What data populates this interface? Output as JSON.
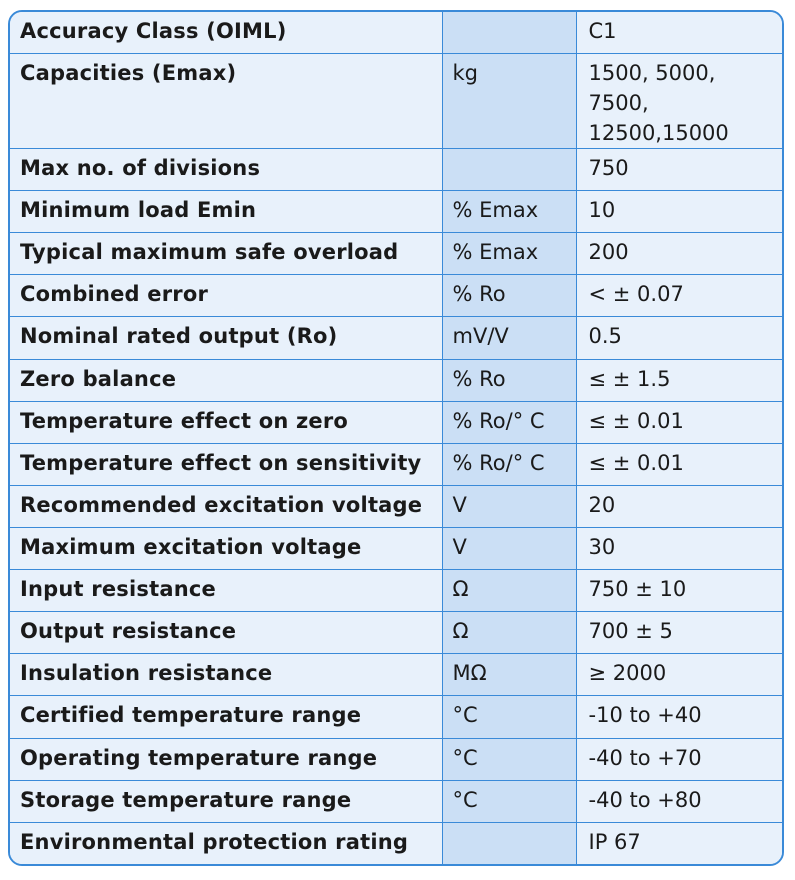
{
  "rows": [
    {
      "parameter": "Accuracy Class (OIML)",
      "unit": "",
      "value": "C1"
    },
    {
      "parameter": "Capacities (Emax)",
      "unit": "kg",
      "value": "1500, 5000, 7500, 12500,15000"
    },
    {
      "parameter": "Max no. of divisions",
      "unit": "",
      "value": "750"
    },
    {
      "parameter": "Minimum load Emin",
      "unit": "% Emax",
      "value": "10"
    },
    {
      "parameter": "Typical maximum safe overload",
      "unit": "% Emax",
      "value": "200"
    },
    {
      "parameter": "Combined error",
      "unit": "% Ro",
      "value": "< ± 0.07"
    },
    {
      "parameter": "Nominal rated output (Ro)",
      "unit": "mV/V",
      "value": "0.5"
    },
    {
      "parameter": "Zero balance",
      "unit": "% Ro",
      "value": "≤ ± 1.5"
    },
    {
      "parameter": "Temperature effect on zero",
      "unit": "% Ro/° C",
      "value": "≤ ± 0.01"
    },
    {
      "parameter": "Temperature effect on sensitivity",
      "unit": "% Ro/° C",
      "value": "≤ ± 0.01"
    },
    {
      "parameter": "Recommended excitation voltage",
      "unit": "V",
      "value": "20"
    },
    {
      "parameter": "Maximum excitation voltage",
      "unit": "V",
      "value": "30"
    },
    {
      "parameter": "Input resistance",
      "unit": "Ω",
      "value": "750 ± 10"
    },
    {
      "parameter": "Output resistance",
      "unit": "Ω",
      "value": "700 ± 5"
    },
    {
      "parameter": "Insulation resistance",
      "unit": "MΩ",
      "value": "≥ 2000"
    },
    {
      "parameter": "Certified temperature range",
      "unit": "°C",
      "value": "-10 to +40"
    },
    {
      "parameter": "Operating temperature range",
      "unit": "°C",
      "value": "-40 to +70"
    },
    {
      "parameter": "Storage temperature range",
      "unit": "°C",
      "value": "-40 to +80"
    },
    {
      "parameter": "Environmental protection rating",
      "unit": "",
      "value": "IP 67"
    }
  ]
}
